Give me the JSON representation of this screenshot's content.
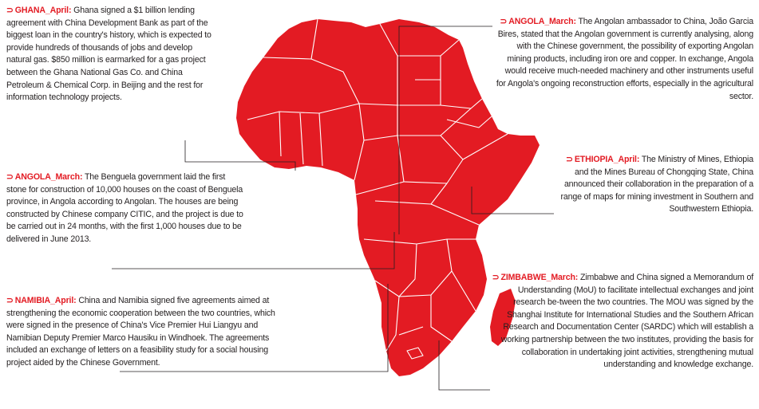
{
  "colors": {
    "accent": "#e31b23",
    "border": "#ffffff",
    "text": "#231f20",
    "leader": "#231f20"
  },
  "map": {
    "region": "Africa",
    "arrow_glyph": "⊃"
  },
  "notes": {
    "ghana": {
      "country": "GHANA",
      "month": "April:",
      "text": "Ghana signed a $1 billion lending agreement with China Development Bank as part of the biggest loan in the country's history, which is expected to provide hundreds of thousands of jobs and develop natural gas. $850 million is earmarked for a gas project between the Ghana National Gas Co. and China Petroleum & Chemical Corp. in Beijing and the rest for information technology projects."
    },
    "angola_benguela": {
      "country": "ANGOLA",
      "month": "March:",
      "text": "The Benguela government laid the first stone for construction of 10,000 houses on the coast of Benguela province, in Angola according to Angolan. The houses are being constructed by Chinese company CITIC, and the project is due to be carried out in 24 months, with the first 1,000 houses due to be delivered in June 2013."
    },
    "namibia": {
      "country": "NAMIBIA",
      "month": "April:",
      "text": "China and Namibia signed five agreements aimed at strengthening the economic cooperation between the two countries, which were signed in the presence of China's Vice Premier Hui Liangyu and Namibian Deputy Premier Marco Hausiku in Windhoek. The agreements included an exchange of letters on a feasibility study for a social housing project aided by the Chinese Government."
    },
    "angola_mining": {
      "country": "ANGOLA",
      "month": "March:",
      "text": "The Angolan ambassador to China, João Garcia Bires, stated that the Angolan government is currently analysing, along with the Chinese government, the possibility of exporting Angolan mining products, including iron ore and copper. In exchange, Angola would receive much-needed machinery and other instruments useful for Angola's ongoing reconstruction efforts, especially in the agricultural sector."
    },
    "ethiopia": {
      "country": "ETHIOPIA",
      "month": "April:",
      "text": "The Ministry of Mines, Ethiopia and the Mines Bureau of Chongqing State, China announced their collaboration in the preparation of a range of maps for mining investment in Southern and Southwestern Ethiopia."
    },
    "zimbabwe": {
      "country": "ZIMBABWE",
      "month": "March:",
      "text": "Zimbabwe and China signed a Memorandum of Understanding (MoU) to facilitate intellectual exchanges and joint research be-tween the two countries. The MOU was signed by the Shanghai Institute for International Studies and the Southern African Research and Documentation Center (SARDC) which will establish a working partnership between the two institutes, providing the basis for collaboration in undertaking joint activities, strengthening mutual understanding and knowledge exchange."
    }
  }
}
